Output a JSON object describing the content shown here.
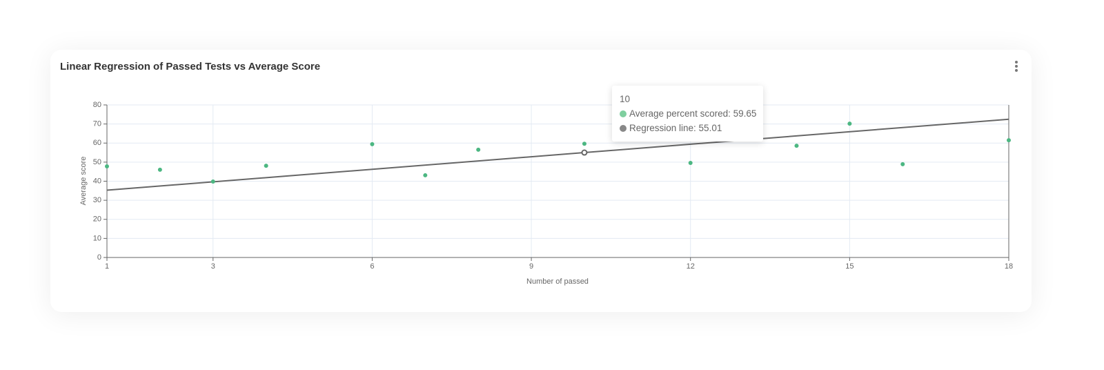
{
  "chart_data": {
    "type": "scatter",
    "title": "Linear Regression of Passed Tests vs Average Score",
    "xlabel": "Number of passed",
    "ylabel": "Average score",
    "xlim": [
      1,
      18
    ],
    "xticks": [
      1,
      3,
      6,
      9,
      12,
      15,
      18
    ],
    "ylim": [
      0,
      80
    ],
    "yticks": [
      0,
      10,
      20,
      30,
      40,
      50,
      60,
      70,
      80
    ],
    "grid": true,
    "series": [
      {
        "name": "Average percent scored",
        "type": "scatter",
        "color": "#4cb782",
        "x": [
          1,
          2,
          3,
          4,
          6,
          7,
          8,
          10,
          12,
          14,
          15,
          16,
          18
        ],
        "values": [
          47.8,
          46.0,
          39.8,
          48.1,
          59.4,
          43.1,
          56.5,
          59.65,
          49.6,
          58.6,
          70.2,
          48.9,
          61.5
        ]
      },
      {
        "name": "Regression line",
        "type": "line",
        "color": "#666666",
        "x": [
          1,
          10,
          18
        ],
        "values": [
          35.3,
          55.01,
          72.5
        ]
      }
    ],
    "tooltip": {
      "x": 10,
      "items": [
        "Average percent scored: 59.65",
        "Regression line: 55.01"
      ]
    }
  }
}
